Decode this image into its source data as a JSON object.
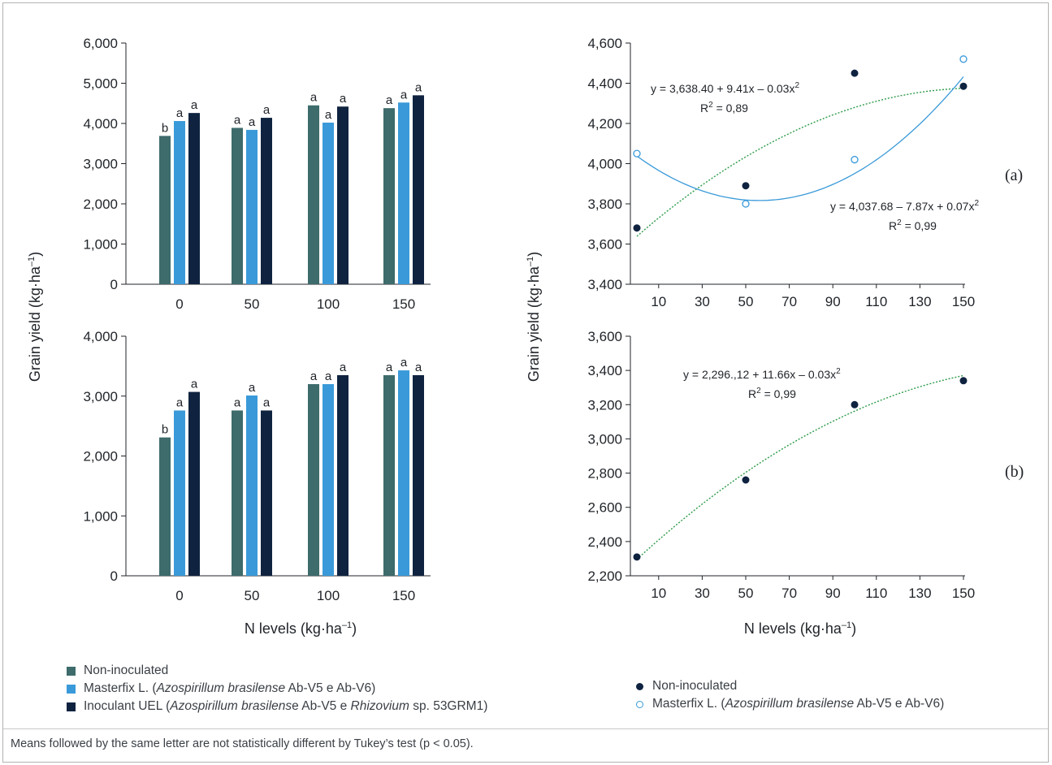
{
  "colors": {
    "non_inoculated_bar": "#3e6b6b",
    "masterfix_bar": "#3a9ad9",
    "uel_bar": "#0f2340",
    "non_inoculated_point": "#0f2340",
    "masterfix_point": "#3a9ad9",
    "trend_green": "#2e9b4a",
    "trend_blue": "#3a9ad9"
  },
  "chart_data": [
    {
      "type": "bar",
      "panel": "a-left",
      "categories": [
        "0",
        "50",
        "100",
        "150"
      ],
      "ylim": [
        0,
        6000
      ],
      "yticks": [
        "0",
        "1,000",
        "2,000",
        "3,000",
        "4,000",
        "5,000",
        "6,000"
      ],
      "ytick_values": [
        0,
        1000,
        2000,
        3000,
        4000,
        5000,
        6000
      ],
      "series": [
        {
          "name": "Non-inoculated",
          "values": [
            3690,
            3890,
            4450,
            4380
          ],
          "letters": [
            "b",
            "a",
            "a",
            "a"
          ]
        },
        {
          "name": "Masterfix L. (Azospirillum brasilense Ab-V5 e Ab-V6)",
          "values": [
            4060,
            3840,
            4020,
            4520
          ],
          "letters": [
            "a",
            "a",
            "a",
            "a"
          ]
        },
        {
          "name": "Inoculant UEL (Azospirillum brasilense Ab-V5 e Rhizovium sp. 53GRM1)",
          "values": [
            4260,
            4140,
            4420,
            4700
          ],
          "letters": [
            "a",
            "a",
            "a",
            "a"
          ]
        }
      ]
    },
    {
      "type": "bar",
      "panel": "b-left",
      "categories": [
        "0",
        "50",
        "100",
        "150"
      ],
      "ylim": [
        0,
        4000
      ],
      "yticks": [
        "0",
        "1,000",
        "2,000",
        "3,000",
        "4,000"
      ],
      "ytick_values": [
        0,
        1000,
        2000,
        3000,
        4000
      ],
      "series": [
        {
          "name": "Non-inoculated",
          "values": [
            2310,
            2760,
            3200,
            3350
          ],
          "letters": [
            "b",
            "a",
            "a",
            "a"
          ]
        },
        {
          "name": "Masterfix L. (Azospirillum brasilense Ab-V5 e Ab-V6)",
          "values": [
            2760,
            3010,
            3200,
            3430
          ],
          "letters": [
            "a",
            "a",
            "a",
            "a"
          ]
        },
        {
          "name": "Inoculant UEL (Azospirillum brasilense Ab-V5 e Rhizovium sp. 53GRM1)",
          "values": [
            3070,
            2760,
            3350,
            3350
          ],
          "letters": [
            "a",
            "a",
            "a",
            "a"
          ]
        }
      ]
    },
    {
      "type": "scatter",
      "panel": "a-right",
      "xlim": [
        0,
        150
      ],
      "ylim": [
        3400,
        4600
      ],
      "xticks": [
        10,
        30,
        50,
        70,
        90,
        110,
        130,
        150
      ],
      "yticks": [
        "3,400",
        "3,600",
        "3,800",
        "4,000",
        "4,200",
        "4,400",
        "4,600"
      ],
      "ytick_values": [
        3400,
        3600,
        3800,
        4000,
        4200,
        4400,
        4600
      ],
      "series": [
        {
          "name": "Non-inoculated",
          "x": [
            0,
            50,
            100,
            150
          ],
          "y": [
            3680,
            3890,
            4450,
            4385
          ],
          "fit": {
            "a": 3638.4,
            "b": 9.41,
            "c": -0.03
          },
          "line": "dotted-green"
        },
        {
          "name": "Masterfix L. (Azospirillum brasilense Ab-V5 e Ab-V6)",
          "x": [
            0,
            50,
            100,
            150
          ],
          "y": [
            4050,
            3800,
            4020,
            4520
          ],
          "fit": {
            "a": 4037.68,
            "b": -7.87,
            "c": 0.07
          },
          "line": "solid-blue"
        }
      ],
      "annotations": [
        {
          "equation": "y = 3,638.40 + 9.41x – 0.03x",
          "r2": "R",
          "r2_value": " = 0,89"
        },
        {
          "equation": "y = 4,037.68 – 7.87x + 0.07x",
          "r2": "R",
          "r2_value": " = 0,99"
        }
      ],
      "panel_label": "(a)"
    },
    {
      "type": "scatter",
      "panel": "b-right",
      "xlim": [
        0,
        150
      ],
      "ylim": [
        2200,
        3600
      ],
      "xticks": [
        10,
        30,
        50,
        70,
        90,
        110,
        130,
        150
      ],
      "yticks": [
        "2,200",
        "2,400",
        "2,600",
        "2,800",
        "3,000",
        "3,200",
        "3,400",
        "3,600"
      ],
      "ytick_values": [
        2200,
        2400,
        2600,
        2800,
        3000,
        3200,
        3400,
        3600
      ],
      "series": [
        {
          "name": "Non-inoculated",
          "x": [
            0,
            50,
            100,
            150
          ],
          "y": [
            2310,
            2760,
            3200,
            3340
          ],
          "fit": {
            "a": 2296.12,
            "b": 11.66,
            "c": -0.03
          },
          "line": "dotted-green"
        }
      ],
      "annotations": [
        {
          "equation": "y = 2,296.,12 + 11.66x – 0.03x",
          "r2": "R",
          "r2_value": " = 0,99"
        }
      ],
      "panel_label": "(b)"
    }
  ],
  "axes": {
    "ylabel": "Grain yield (kg·ha",
    "ylabel_sup": "–1",
    "ylabel_close": ")",
    "xlabel": "N levels (kg·ha",
    "xlabel_sup": "–1",
    "xlabel_close": ")",
    "superscript_2": "2"
  },
  "legend_bars": {
    "items": [
      {
        "text": "Non-inoculated"
      },
      {
        "pre": "Masterfix L. (",
        "italic": "Azospirillum brasilense",
        "post": " Ab-V5 e Ab-V6)"
      },
      {
        "pre": "Inoculant UEL (",
        "italic": "Azospirillum brasilens",
        "mid": "e Ab-V5 e ",
        "italic2": "Rhizovium",
        "post": " sp. 53GRM1)"
      }
    ]
  },
  "legend_points": {
    "items": [
      {
        "text": "Non-inoculated"
      },
      {
        "pre": "Masterfix L. (",
        "italic": "Azospirillum brasilense",
        "post": " Ab-V5 e Ab-V6)"
      }
    ]
  },
  "footnote": "Means followed by the same letter are not statistically different by Tukey’s test (p < 0.05)."
}
